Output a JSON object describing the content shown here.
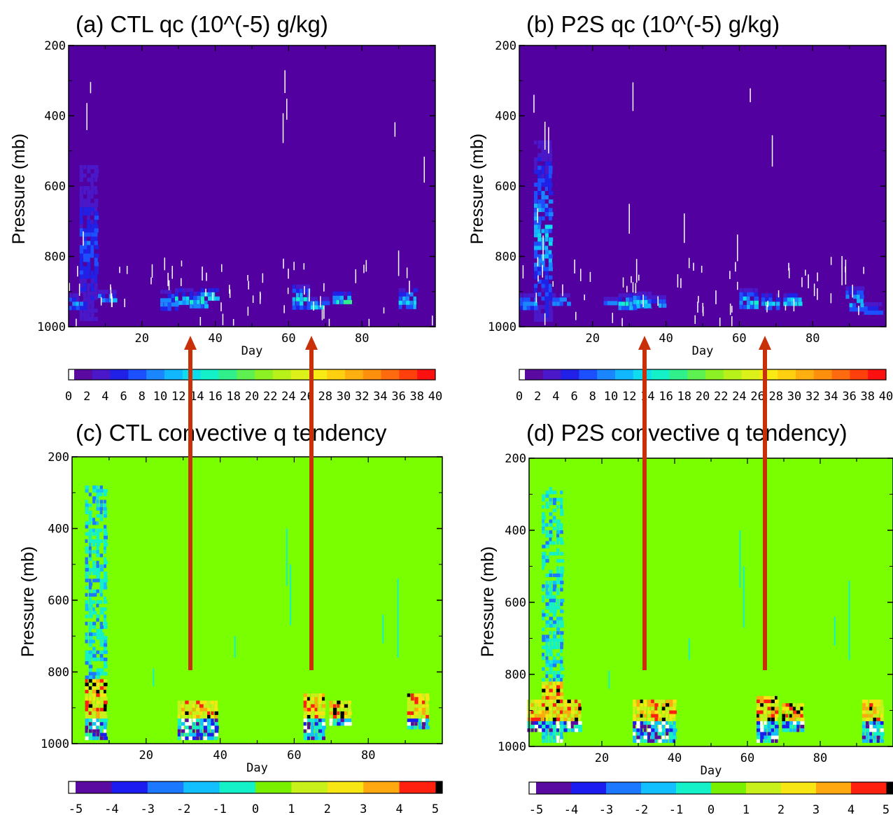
{
  "chart_data": [
    {
      "id": "a",
      "type": "heatmap",
      "title": "(a) CTL qc (10^(-5) g/kg)",
      "xlabel": "Day",
      "ylabel": "Pressure (mb)",
      "xlim": [
        0,
        100
      ],
      "ylim": [
        1000,
        200
      ],
      "xticks": [
        20,
        40,
        60,
        80
      ],
      "yticks": [
        200,
        400,
        600,
        800,
        1000
      ],
      "colorbar": {
        "ticks": [
          "0",
          "2",
          "4",
          "6",
          "8",
          "10",
          "12",
          "14",
          "16",
          "18",
          "20",
          "22",
          "24",
          "26",
          "28",
          "30",
          "32",
          "34",
          "36",
          "38",
          "40"
        ],
        "colors": [
          "#ffffff",
          "#5a0aa0",
          "#4a18c8",
          "#2020e6",
          "#1c50ff",
          "#1a86ff",
          "#12b8ff",
          "#10dcf0",
          "#14f0c8",
          "#30f08c",
          "#5ef050",
          "#8cf024",
          "#b8f01a",
          "#dcf01a",
          "#f8ea14",
          "#ffd010",
          "#ffb010",
          "#ff900e",
          "#ff6a0e",
          "#ff400c",
          "#ff1010"
        ]
      },
      "background": "#5200a0",
      "features": [
        {
          "x": 5,
          "p_top": 540,
          "p_bot": 990,
          "intensity": 8
        },
        {
          "x": 2,
          "p_top": 905,
          "p_bot": 955,
          "intensity": 10
        },
        {
          "x": 10,
          "p_top": 895,
          "p_bot": 935,
          "intensity": 12
        },
        {
          "x": 27,
          "p_top": 895,
          "p_bot": 960,
          "intensity": 12
        },
        {
          "x": 31,
          "p_top": 890,
          "p_bot": 945,
          "intensity": 14
        },
        {
          "x": 35,
          "p_top": 900,
          "p_bot": 950,
          "intensity": 14
        },
        {
          "x": 38,
          "p_top": 890,
          "p_bot": 935,
          "intensity": 18
        },
        {
          "x": 63,
          "p_top": 880,
          "p_bot": 955,
          "intensity": 14
        },
        {
          "x": 68,
          "p_top": 915,
          "p_bot": 960,
          "intensity": 14
        },
        {
          "x": 74,
          "p_top": 900,
          "p_bot": 945,
          "intensity": 16
        },
        {
          "x": 92,
          "p_top": 890,
          "p_bot": 960,
          "intensity": 14
        }
      ],
      "arrows_x": [
        33,
        66
      ]
    },
    {
      "id": "b",
      "type": "heatmap",
      "title": "(b) P2S qc (10^(-5) g/kg)",
      "xlabel": "Day",
      "ylabel": "Pressure (mb)",
      "xlim": [
        0,
        100
      ],
      "ylim": [
        1000,
        200
      ],
      "xticks": [
        20,
        40,
        60,
        80
      ],
      "yticks": [
        200,
        400,
        600,
        800,
        1000
      ],
      "ytick_labels": [
        "200",
        "400",
        "600",
        "800",
        "1000"
      ],
      "colorbar": {
        "ticks": [
          "0",
          "2",
          "4",
          "6",
          "8",
          "10",
          "12",
          "14",
          "16",
          "18",
          "20",
          "22",
          "24",
          "26",
          "28",
          "30",
          "32",
          "34",
          "36",
          "38",
          "40"
        ],
        "colors": [
          "#ffffff",
          "#5a0aa0",
          "#4a18c8",
          "#2020e6",
          "#1c50ff",
          "#1a86ff",
          "#12b8ff",
          "#10dcf0",
          "#14f0c8",
          "#30f08c",
          "#5ef050",
          "#8cf024",
          "#b8f01a",
          "#dcf01a",
          "#f8ea14",
          "#ffd010",
          "#ffb010",
          "#ff900e",
          "#ff6a0e",
          "#ff400c",
          "#ff1010"
        ]
      },
      "background": "#5200a0",
      "features": [
        {
          "x": 6,
          "p_top": 470,
          "p_bot": 990,
          "intensity": 12
        },
        {
          "x": 2,
          "p_top": 905,
          "p_bot": 960,
          "intensity": 12
        },
        {
          "x": 11,
          "p_top": 905,
          "p_bot": 945,
          "intensity": 12
        },
        {
          "x": 25,
          "p_top": 915,
          "p_bot": 950,
          "intensity": 12
        },
        {
          "x": 29,
          "p_top": 905,
          "p_bot": 955,
          "intensity": 14
        },
        {
          "x": 33,
          "p_top": 900,
          "p_bot": 955,
          "intensity": 14
        },
        {
          "x": 37,
          "p_top": 910,
          "p_bot": 955,
          "intensity": 12
        },
        {
          "x": 62,
          "p_top": 890,
          "p_bot": 960,
          "intensity": 14
        },
        {
          "x": 68,
          "p_top": 905,
          "p_bot": 955,
          "intensity": 14
        },
        {
          "x": 74,
          "p_top": 905,
          "p_bot": 945,
          "intensity": 16
        },
        {
          "x": 91,
          "p_top": 885,
          "p_bot": 960,
          "intensity": 14
        },
        {
          "x": 96,
          "p_top": 930,
          "p_bot": 970,
          "intensity": 10
        }
      ],
      "arrows_x": [
        33,
        66
      ]
    },
    {
      "id": "c",
      "type": "heatmap",
      "title": "(c) CTL convective q tendency",
      "xlabel": "Day",
      "ylabel": "Pressure (mb)",
      "xlim": [
        0,
        100
      ],
      "ylim": [
        1000,
        200
      ],
      "xticks": [
        20,
        40,
        60,
        80
      ],
      "yticks": [
        200,
        400,
        600,
        800,
        1000
      ],
      "colorbar": {
        "ticks": [
          "-5",
          "-4",
          "-3",
          "-2",
          "-1",
          "0",
          "1",
          "2",
          "3",
          "4",
          "5"
        ],
        "colors": [
          "#ffffff",
          "#5a0aa0",
          "#1c1cf0",
          "#1c78ff",
          "#12c0ff",
          "#14f0c8",
          "#78f000",
          "#c8f01a",
          "#f8e614",
          "#ffa810",
          "#ff2010",
          "#000000"
        ]
      },
      "background": "#7aff00",
      "features": [
        {
          "x": 6,
          "p_top": 280,
          "p_bot": 990,
          "intensity": 1
        },
        {
          "x": 31,
          "p_top": 880,
          "p_bot": 990,
          "intensity": 1
        },
        {
          "x": 36,
          "p_top": 880,
          "p_bot": 990,
          "intensity": 1
        },
        {
          "x": 65,
          "p_top": 860,
          "p_bot": 990,
          "intensity": 1
        },
        {
          "x": 72,
          "p_top": 880,
          "p_bot": 950,
          "intensity": 1
        },
        {
          "x": 93,
          "p_top": 860,
          "p_bot": 960,
          "intensity": 1
        }
      ],
      "arrows_x": [
        33,
        66
      ]
    },
    {
      "id": "d",
      "type": "heatmap",
      "title": "(d) P2S convective q tendency)",
      "xlabel": "Day",
      "ylabel": "Pressure (mb)",
      "xlim": [
        0,
        100
      ],
      "ylim": [
        1000,
        200
      ],
      "xticks": [
        20,
        40,
        60,
        80
      ],
      "yticks": [
        200,
        400,
        600,
        800,
        1000
      ],
      "colorbar": {
        "ticks": [
          "-5",
          "-4",
          "-3",
          "-2",
          "-1",
          "0",
          "1",
          "2",
          "3",
          "4",
          "5"
        ],
        "colors": [
          "#ffffff",
          "#5a0aa0",
          "#1c1cf0",
          "#1c78ff",
          "#12c0ff",
          "#14f0c8",
          "#78f000",
          "#c8f01a",
          "#f8e614",
          "#ffa810",
          "#ff2010",
          "#000000"
        ]
      },
      "background": "#7aff00",
      "features": [
        {
          "x": 6,
          "p_top": 280,
          "p_bot": 990,
          "intensity": 1
        },
        {
          "x": 2,
          "p_top": 870,
          "p_bot": 960,
          "intensity": 1
        },
        {
          "x": 11,
          "p_top": 870,
          "p_bot": 960,
          "intensity": 1
        },
        {
          "x": 31,
          "p_top": 870,
          "p_bot": 990,
          "intensity": 1
        },
        {
          "x": 37,
          "p_top": 870,
          "p_bot": 990,
          "intensity": 1
        },
        {
          "x": 65,
          "p_top": 860,
          "p_bot": 990,
          "intensity": 1
        },
        {
          "x": 72,
          "p_top": 880,
          "p_bot": 960,
          "intensity": 1
        },
        {
          "x": 94,
          "p_top": 870,
          "p_bot": 990,
          "intensity": 1
        }
      ],
      "arrows_x": [
        33,
        66
      ]
    }
  ],
  "arrow_color": "#c8300a"
}
